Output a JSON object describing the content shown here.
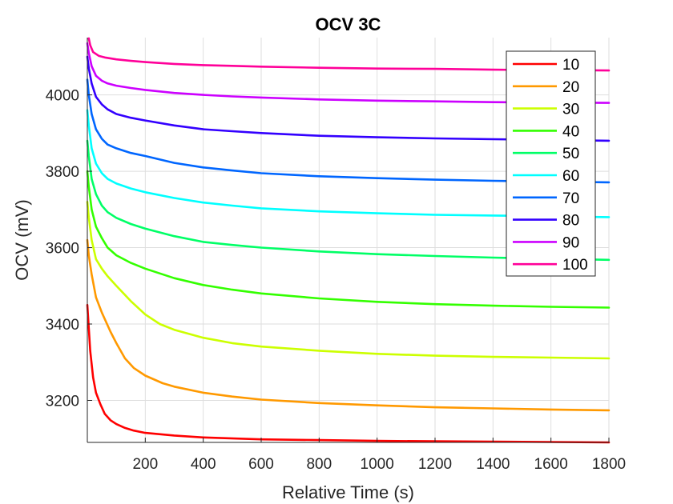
{
  "chart_data": {
    "type": "line",
    "title": "OCV 3C",
    "xlabel": "Relative Time (s)",
    "ylabel": "OCV (mV)",
    "xlim": [
      0,
      1800
    ],
    "ylim": [
      3090,
      4150
    ],
    "xticks": [
      200,
      400,
      600,
      800,
      1000,
      1200,
      1400,
      1600,
      1800
    ],
    "yticks": [
      3200,
      3400,
      3600,
      3800,
      4000
    ],
    "grid": true,
    "legend_position": "top-right",
    "series": [
      {
        "name": "10",
        "color": "#ff0000",
        "x": [
          0,
          5,
          10,
          20,
          30,
          45,
          60,
          80,
          100,
          130,
          160,
          200,
          300,
          400,
          600,
          800,
          1000,
          1200,
          1400,
          1600,
          1800
        ],
        "y": [
          3450,
          3390,
          3330,
          3260,
          3220,
          3190,
          3165,
          3148,
          3138,
          3128,
          3121,
          3115,
          3108,
          3103,
          3098,
          3096,
          3094,
          3093,
          3092,
          3091,
          3090
        ]
      },
      {
        "name": "20",
        "color": "#ff9900",
        "x": [
          0,
          5,
          15,
          30,
          50,
          80,
          100,
          130,
          160,
          200,
          260,
          300,
          400,
          500,
          600,
          800,
          1000,
          1200,
          1400,
          1600,
          1800
        ],
        "y": [
          3620,
          3580,
          3530,
          3470,
          3430,
          3380,
          3350,
          3310,
          3285,
          3265,
          3245,
          3236,
          3220,
          3210,
          3202,
          3193,
          3187,
          3182,
          3179,
          3176,
          3174
        ]
      },
      {
        "name": "30",
        "color": "#ccff00",
        "x": [
          0,
          5,
          15,
          30,
          50,
          70,
          100,
          150,
          200,
          250,
          300,
          400,
          500,
          600,
          800,
          1000,
          1200,
          1400,
          1600,
          1800
        ],
        "y": [
          3720,
          3680,
          3620,
          3570,
          3545,
          3525,
          3500,
          3460,
          3425,
          3400,
          3385,
          3364,
          3350,
          3341,
          3330,
          3322,
          3317,
          3314,
          3312,
          3310
        ]
      },
      {
        "name": "40",
        "color": "#33ff00",
        "x": [
          0,
          5,
          15,
          30,
          50,
          70,
          100,
          150,
          200,
          300,
          400,
          500,
          600,
          800,
          1000,
          1200,
          1400,
          1600,
          1800
        ],
        "y": [
          3800,
          3760,
          3700,
          3655,
          3625,
          3600,
          3580,
          3560,
          3545,
          3520,
          3502,
          3490,
          3480,
          3467,
          3458,
          3452,
          3448,
          3445,
          3443
        ]
      },
      {
        "name": "50",
        "color": "#00ff66",
        "x": [
          0,
          5,
          15,
          30,
          50,
          70,
          100,
          150,
          200,
          300,
          400,
          500,
          600,
          800,
          1000,
          1200,
          1400,
          1600,
          1800
        ],
        "y": [
          3880,
          3840,
          3780,
          3740,
          3710,
          3693,
          3678,
          3662,
          3650,
          3630,
          3615,
          3607,
          3600,
          3590,
          3583,
          3578,
          3574,
          3571,
          3568
        ]
      },
      {
        "name": "60",
        "color": "#00ffff",
        "x": [
          0,
          5,
          15,
          30,
          50,
          70,
          100,
          150,
          200,
          300,
          400,
          500,
          600,
          800,
          1000,
          1200,
          1400,
          1600,
          1800
        ],
        "y": [
          3960,
          3920,
          3860,
          3820,
          3795,
          3780,
          3768,
          3755,
          3745,
          3730,
          3718,
          3710,
          3703,
          3695,
          3690,
          3686,
          3684,
          3682,
          3680
        ]
      },
      {
        "name": "70",
        "color": "#0066ff",
        "x": [
          0,
          5,
          15,
          30,
          50,
          70,
          100,
          150,
          200,
          300,
          400,
          500,
          600,
          800,
          1000,
          1200,
          1400,
          1600,
          1800
        ],
        "y": [
          4040,
          4000,
          3950,
          3910,
          3885,
          3870,
          3860,
          3848,
          3840,
          3822,
          3810,
          3802,
          3795,
          3787,
          3782,
          3778,
          3775,
          3773,
          3771
        ]
      },
      {
        "name": "80",
        "color": "#3300ff",
        "x": [
          0,
          5,
          15,
          30,
          50,
          70,
          100,
          150,
          200,
          300,
          400,
          500,
          600,
          800,
          1000,
          1200,
          1400,
          1600,
          1800
        ],
        "y": [
          4100,
          4070,
          4030,
          3995,
          3975,
          3962,
          3950,
          3940,
          3933,
          3920,
          3910,
          3905,
          3900,
          3893,
          3889,
          3886,
          3884,
          3882,
          3880
        ]
      },
      {
        "name": "90",
        "color": "#cc00ff",
        "x": [
          0,
          5,
          15,
          30,
          50,
          70,
          100,
          150,
          200,
          300,
          400,
          500,
          600,
          800,
          1000,
          1200,
          1400,
          1600,
          1800
        ],
        "y": [
          4135,
          4110,
          4075,
          4050,
          4037,
          4030,
          4024,
          4018,
          4013,
          4005,
          4000,
          3996,
          3993,
          3988,
          3985,
          3983,
          3981,
          3980,
          3979
        ]
      },
      {
        "name": "100",
        "color": "#ff0099",
        "x": [
          5,
          10,
          20,
          40,
          60,
          100,
          150,
          200,
          300,
          400,
          500,
          600,
          800,
          1000,
          1200,
          1400,
          1600,
          1800
        ],
        "y": [
          4148,
          4130,
          4112,
          4102,
          4098,
          4093,
          4089,
          4086,
          4081,
          4078,
          4076,
          4074,
          4071,
          4069,
          4068,
          4066,
          4065,
          4064
        ]
      }
    ]
  }
}
